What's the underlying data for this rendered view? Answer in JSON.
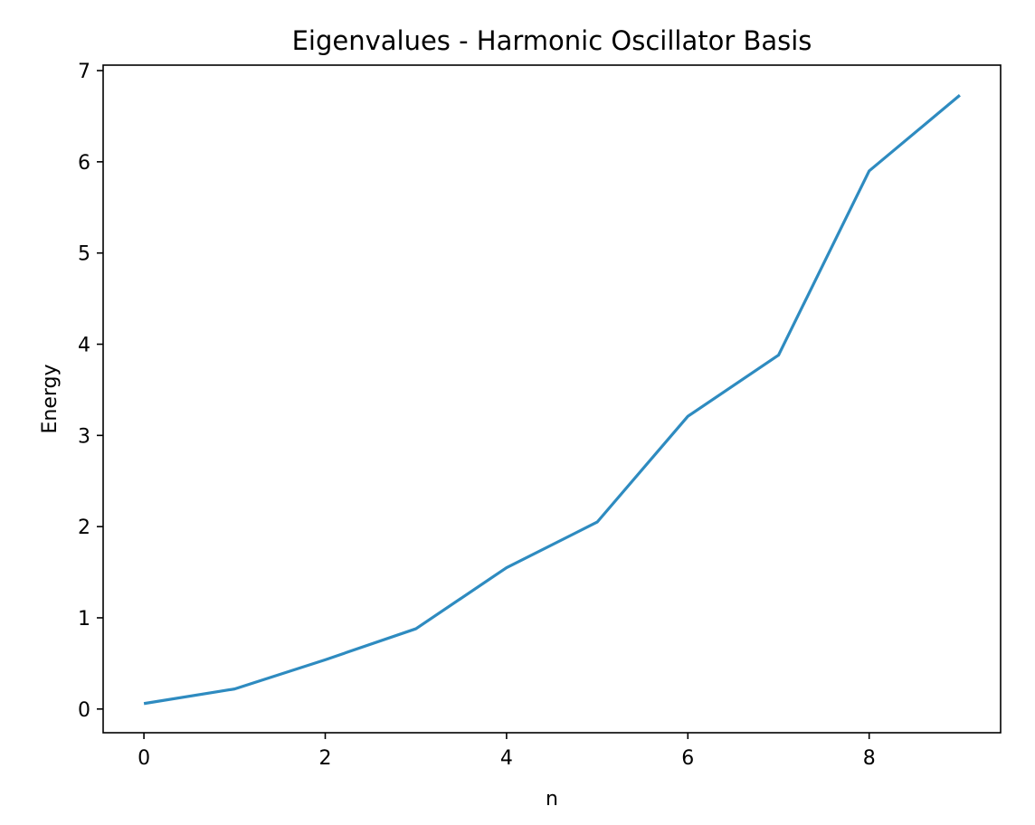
{
  "chart_data": {
    "type": "line",
    "title": "Eigenvalues - Harmonic Oscillator Basis",
    "xlabel": "n",
    "ylabel": "Energy",
    "x": [
      0,
      1,
      2,
      3,
      4,
      5,
      6,
      7,
      8,
      9
    ],
    "series": [
      {
        "values": [
          0.06,
          0.22,
          0.54,
          0.88,
          1.55,
          2.05,
          3.21,
          3.88,
          5.9,
          6.73
        ],
        "color": "#2e8bc0"
      }
    ],
    "xlim": [
      -0.45,
      9.45
    ],
    "ylim": [
      -0.26,
      7.06
    ],
    "xticks": [
      0,
      2,
      4,
      6,
      8
    ],
    "yticks": [
      0,
      1,
      2,
      3,
      4,
      5,
      6,
      7
    ],
    "xtick_labels": [
      "0",
      "2",
      "4",
      "6",
      "8"
    ],
    "ytick_labels": [
      "0",
      "1",
      "2",
      "3",
      "4",
      "5",
      "6",
      "7"
    ],
    "grid": false,
    "legend": "none"
  }
}
